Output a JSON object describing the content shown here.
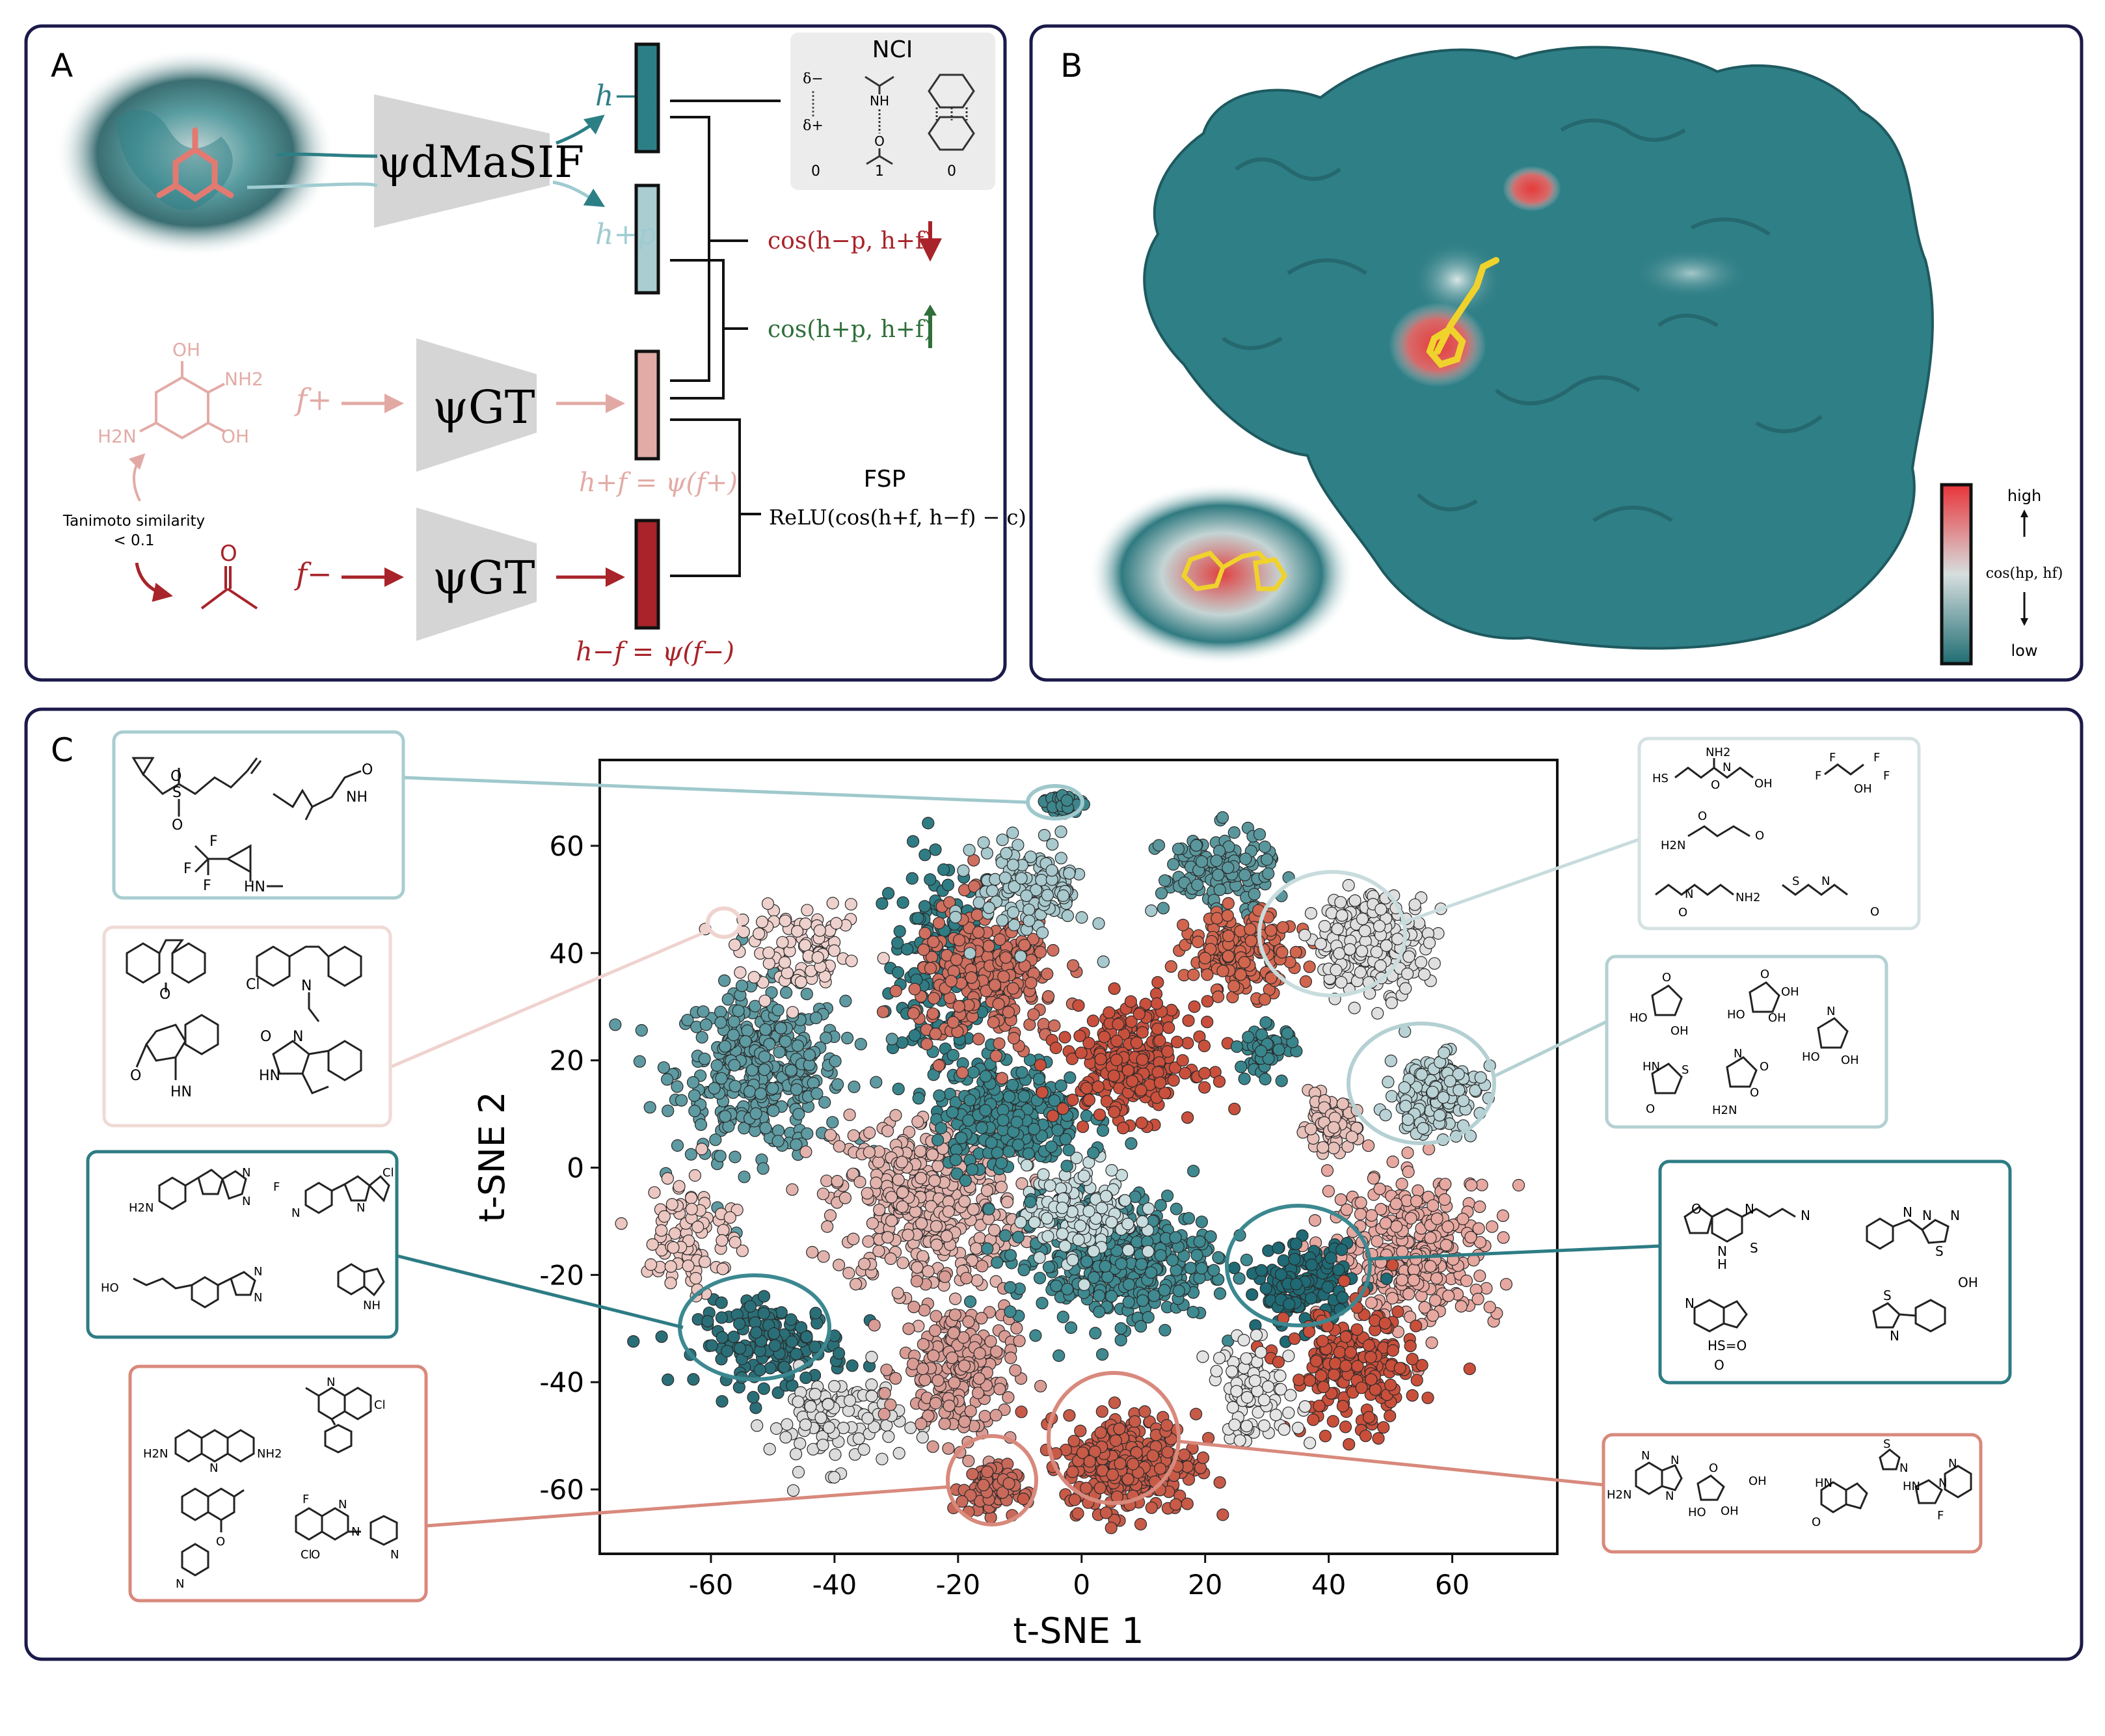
{
  "colors": {
    "teal": "#2d7f86",
    "teal_light": "#9fcbd0",
    "pink": "#e7b1ad",
    "red": "#a8232a",
    "salmon": "#d8735e",
    "panel_border": "#1b1a4a",
    "grey": "#d5d5d5",
    "cos_red": "#a8232a",
    "cos_green": "#2f6f3a"
  },
  "panel_a": {
    "letter": "A",
    "encoder_dmasif": "ψdMaSIF",
    "encoder_gt_pos": "ψGT",
    "encoder_gt_neg": "ψGT",
    "h_p_neg": "h−p",
    "h_p_pos": "h+p",
    "f_pos": "f+",
    "f_neg": "f−",
    "h_f_pos_def": "h+f = ψ(f+)",
    "h_f_neg_def": "h−f = ψ(f−)",
    "cos_neg": "cos(h−p, h+f)",
    "cos_pos": "cos(h+p, h+f)",
    "nci_title": "NCI",
    "nci_values": [
      "0",
      "1",
      "0"
    ],
    "nci_delta_minus": "δ−",
    "nci_delta_plus": "δ+",
    "nci_nh": "NH",
    "nci_o": "O",
    "fsp_title": "FSP",
    "fsp_formula": "ReLU(cos(h+f, h−f) − c)",
    "tanimoto_line1": "Tanimoto similarity",
    "tanimoto_line2": "< 0.1",
    "mol_oh": "OH",
    "mol_nh2_a": "NH2",
    "mol_h2n": "H2N",
    "mol_oh2": "OH",
    "mol_o": "O"
  },
  "panel_b": {
    "letter": "B",
    "colorbar_high": "high",
    "colorbar_low": "low",
    "colorbar_label": "cos(hp, hf)"
  },
  "panel_c": {
    "letter": "C",
    "atoms": [
      "O",
      "S",
      "O",
      "O",
      "NH",
      "F",
      "F",
      "F",
      "HN",
      "O",
      "Cl",
      "N",
      "O",
      "HN",
      "O",
      "N",
      "HN",
      "H2N",
      "N",
      "N",
      "F",
      "N",
      "Cl",
      "N",
      "HO",
      "N",
      "N",
      "NH",
      "H2N",
      "N",
      "NH2",
      "N",
      "Cl",
      "N",
      "O",
      "F",
      "N",
      "N",
      "N",
      "Cl",
      "O",
      "HS",
      "NH2",
      "N",
      "OH",
      "O",
      "F",
      "F",
      "F",
      "F",
      "OH",
      "H2N",
      "O",
      "O",
      "N",
      "NH2",
      "S",
      "N",
      "O",
      "O",
      "HO",
      "O",
      "OH",
      "O",
      "OH",
      "HO",
      "OH",
      "HN",
      "S",
      "O",
      "O",
      "N",
      "O",
      "H2N",
      "HO",
      "N",
      "OH",
      "O",
      "N",
      "N",
      "N",
      "H",
      "S",
      "N",
      "N",
      "N",
      "S",
      "N",
      "OH",
      "S",
      "N",
      "HS=O",
      "O",
      "N",
      "N",
      "N",
      "H2N",
      "O",
      "OH",
      "HO",
      "OH",
      "S",
      "N",
      "N",
      "HN",
      "O",
      "HN",
      "N",
      "F"
    ]
  },
  "chart_data": {
    "type": "scatter",
    "title": "",
    "xlabel": "t-SNE 1",
    "ylabel": "t-SNE 2",
    "xlim": [
      -78,
      77
    ],
    "ylim": [
      -72,
      76
    ],
    "xticks": [
      -60,
      -40,
      -20,
      0,
      20,
      40,
      60
    ],
    "yticks": [
      -60,
      -40,
      -20,
      0,
      20,
      40,
      60
    ],
    "xtick_labels": [
      "-60",
      "-40",
      "-20",
      "0",
      "20",
      "40",
      "60"
    ],
    "ytick_labels": [
      "-60",
      "-40",
      "-20",
      "0",
      "20",
      "40",
      "60"
    ],
    "clusters": [
      {
        "name": "teal-top-left-diagonal",
        "color": "#2f7c84",
        "cx": -22,
        "cy": 38,
        "sx": 6,
        "sy": 14,
        "n": 170
      },
      {
        "name": "teal-left-big",
        "color": "#5e9aa1",
        "cx": -52,
        "cy": 18,
        "sx": 9,
        "sy": 10,
        "n": 380
      },
      {
        "name": "pink-left-big",
        "color": "#e2b3ad",
        "cx": -25,
        "cy": -6,
        "sx": 10,
        "sy": 11,
        "n": 420
      },
      {
        "name": "teal-left-bottom",
        "color": "#2a6f78",
        "cx": -50,
        "cy": -33,
        "sx": 8,
        "sy": 5,
        "n": 160
      },
      {
        "name": "light-left-bottom",
        "color": "#dcdcdc",
        "cx": -40,
        "cy": -47,
        "sx": 7,
        "sy": 6,
        "n": 110
      },
      {
        "name": "pink-bottom-mid",
        "color": "#d99c95",
        "cx": -20,
        "cy": -38,
        "sx": 6,
        "sy": 9,
        "n": 220
      },
      {
        "name": "red-bottom-small",
        "color": "#c9695a",
        "cx": -15,
        "cy": -60,
        "sx": 3,
        "sy": 3,
        "n": 90
      },
      {
        "name": "red-bottom-center",
        "color": "#c85a48",
        "cx": 8,
        "cy": -55,
        "sx": 7,
        "sy": 6,
        "n": 340
      },
      {
        "name": "teal-center",
        "color": "#3f8990",
        "cx": 5,
        "cy": -17,
        "sx": 11,
        "sy": 8,
        "n": 420
      },
      {
        "name": "light-center",
        "color": "#c8dcde",
        "cx": 0,
        "cy": -8,
        "sx": 6,
        "sy": 6,
        "n": 150
      },
      {
        "name": "teal-mid",
        "color": "#3a868d",
        "cx": -12,
        "cy": 10,
        "sx": 8,
        "sy": 7,
        "n": 260
      },
      {
        "name": "salmon-upper-mid",
        "color": "#cf6f5f",
        "cx": -15,
        "cy": 35,
        "sx": 8,
        "sy": 9,
        "n": 260
      },
      {
        "name": "red-center",
        "color": "#c9503d",
        "cx": 8,
        "cy": 20,
        "sx": 7,
        "sy": 7,
        "n": 260
      },
      {
        "name": "light-top",
        "color": "#a8c9cd",
        "cx": -8,
        "cy": 52,
        "sx": 6,
        "sy": 6,
        "n": 140
      },
      {
        "name": "teal-top-right",
        "color": "#5a979d",
        "cx": 22,
        "cy": 55,
        "sx": 6,
        "sy": 5,
        "n": 140
      },
      {
        "name": "salmon-top-right",
        "color": "#d2654e",
        "cx": 26,
        "cy": 40,
        "sx": 6,
        "sy": 5,
        "n": 170
      },
      {
        "name": "light-top-right",
        "color": "#dfdfdf",
        "cx": 47,
        "cy": 42,
        "sx": 6,
        "sy": 6,
        "n": 250
      },
      {
        "name": "light-right",
        "color": "#b9d2d5",
        "cx": 57,
        "cy": 14,
        "sx": 5,
        "sy": 5,
        "n": 170
      },
      {
        "name": "pink-right-small",
        "color": "#e8c0ba",
        "cx": 40,
        "cy": 8,
        "sx": 3,
        "sy": 3,
        "n": 80
      },
      {
        "name": "teal-right-small",
        "color": "#39858c",
        "cx": 30,
        "cy": 22,
        "sx": 3,
        "sy": 3,
        "n": 60
      },
      {
        "name": "pink-right-big",
        "color": "#e6a8a0",
        "cx": 54,
        "cy": -15,
        "sx": 9,
        "sy": 9,
        "n": 330
      },
      {
        "name": "teal-right-circle",
        "color": "#1f6a74",
        "cx": 36,
        "cy": -22,
        "sx": 5,
        "sy": 5,
        "n": 150
      },
      {
        "name": "salmon-right-bottom",
        "color": "#c94f3b",
        "cx": 44,
        "cy": -38,
        "sx": 7,
        "sy": 8,
        "n": 200
      },
      {
        "name": "light-right-bottom",
        "color": "#e4e4e4",
        "cx": 28,
        "cy": -42,
        "sx": 5,
        "sy": 6,
        "n": 90
      },
      {
        "name": "teal-top-tiny",
        "color": "#3d868c",
        "cx": -3,
        "cy": 68,
        "sx": 2,
        "sy": 1.2,
        "n": 35
      },
      {
        "name": "pink-left-islands",
        "color": "#ecc6c0",
        "cx": -63,
        "cy": -12,
        "sx": 5,
        "sy": 8,
        "n": 90
      },
      {
        "name": "pink-upper-left-islands",
        "color": "#eed1cd",
        "cx": -45,
        "cy": 40,
        "sx": 7,
        "sy": 5,
        "n": 90
      }
    ]
  }
}
